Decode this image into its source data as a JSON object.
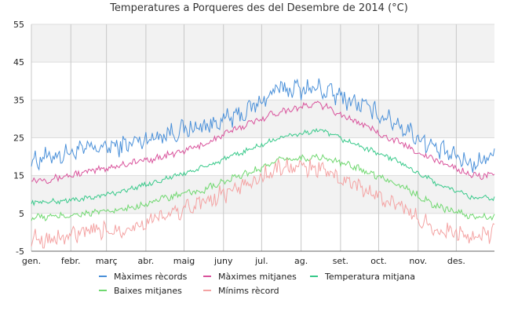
{
  "chart_data": {
    "type": "line",
    "title": "Temperatures a Porqueres des del Desembre de 2014 (°C)",
    "xlabel": "",
    "ylabel": "",
    "ylim": [
      -5,
      55
    ],
    "yticks": [
      -5,
      5,
      15,
      25,
      35,
      45,
      55
    ],
    "xlim": [
      1,
      365
    ],
    "month_ticks": [
      {
        "label": "gen.",
        "day": 1
      },
      {
        "label": "febr.",
        "day": 32
      },
      {
        "label": "març",
        "day": 60
      },
      {
        "label": "abr.",
        "day": 91
      },
      {
        "label": "maig",
        "day": 121
      },
      {
        "label": "juny",
        "day": 152
      },
      {
        "label": "jul.",
        "day": 182
      },
      {
        "label": "ag.",
        "day": 213
      },
      {
        "label": "set.",
        "day": 244
      },
      {
        "label": "oct.",
        "day": 274
      },
      {
        "label": "nov.",
        "day": 305
      },
      {
        "label": "des.",
        "day": 335
      }
    ],
    "grid": true,
    "legend_position": "bottom",
    "series_profile": "approximate values read at the middle of each month (day of year)",
    "series": [
      {
        "name": "Màximes rècords",
        "color": "#4a90d9",
        "x": [
          1,
          15,
          46,
          74,
          105,
          135,
          166,
          196,
          227,
          258,
          288,
          319,
          349,
          365
        ],
        "values": [
          19,
          20,
          22,
          23,
          26,
          28,
          31,
          38,
          38,
          34,
          29,
          22,
          18,
          21
        ]
      },
      {
        "name": "Màximes mitjanes",
        "color": "#d9539c",
        "x": [
          1,
          15,
          46,
          74,
          105,
          135,
          166,
          196,
          227,
          258,
          288,
          319,
          349,
          365
        ],
        "values": [
          14,
          14,
          16,
          18,
          20,
          23,
          28,
          32,
          34,
          29,
          24,
          19,
          15,
          15
        ]
      },
      {
        "name": "Temperatura mitjana",
        "color": "#38c98a",
        "x": [
          1,
          15,
          46,
          74,
          105,
          135,
          166,
          196,
          227,
          258,
          288,
          319,
          349,
          365
        ],
        "values": [
          8,
          8,
          9,
          11,
          14,
          17,
          21,
          25,
          27,
          23,
          19,
          13,
          9,
          9
        ]
      },
      {
        "name": "Baixes mitjanes",
        "color": "#6fd86f",
        "x": [
          1,
          15,
          46,
          74,
          105,
          135,
          166,
          196,
          227,
          258,
          288,
          319,
          349,
          365
        ],
        "values": [
          4,
          4,
          5,
          6,
          9,
          11,
          15,
          19,
          20,
          17,
          13,
          7,
          4,
          4
        ]
      },
      {
        "name": "Mínims rècord",
        "color": "#f4a3a3",
        "x": [
          1,
          15,
          46,
          74,
          105,
          135,
          166,
          196,
          227,
          258,
          288,
          319,
          349,
          365
        ],
        "values": [
          -1,
          -2,
          0,
          1,
          4,
          8,
          12,
          17,
          17,
          12,
          7,
          1,
          -2,
          0
        ]
      }
    ]
  },
  "colors": {
    "band": "#f2f2f2",
    "gridline": "#dddddd",
    "month_line": "#c8c8c8",
    "axis": "#666666",
    "text": "#222222"
  }
}
